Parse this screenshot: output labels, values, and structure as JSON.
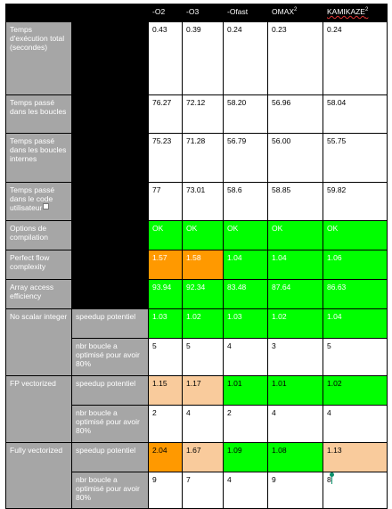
{
  "header": {
    "columns": [
      "-O2",
      "-O3",
      "-Ofast",
      "OMAX",
      "KAMIKAZE"
    ],
    "omax_sup": "2",
    "kamikaze_sup": "2"
  },
  "rows": [
    {
      "label": "Temps d'exécution total (secondes)",
      "values": [
        "0.43",
        "0.39",
        "0.24",
        "0.23",
        "0.24"
      ]
    },
    {
      "label": "Temps passé dans les boucles",
      "values": [
        "76.27",
        "72.12",
        "58.20",
        "56.96",
        "58.04"
      ]
    },
    {
      "label": "Temps passé dans les boucles internes",
      "values": [
        "75.23",
        "71.28",
        "56.79",
        "56.00",
        "55.75"
      ]
    },
    {
      "label": "Temps passé dans le code utilisateur",
      "values": [
        "77",
        "73.01",
        "58.6",
        "58.85",
        "59.82"
      ]
    },
    {
      "label": "Options de compilation",
      "values": [
        "OK",
        "OK",
        "OK",
        "OK",
        "OK"
      ]
    },
    {
      "label": "Perfect flow complexity",
      "values": [
        "1.57",
        "1.58",
        "1.04",
        "1.04",
        "1.06"
      ]
    },
    {
      "label": "Array access efficiency",
      "values": [
        "93.94",
        "92.34",
        "83.48",
        "87.64",
        "86.63"
      ]
    }
  ],
  "groups": [
    {
      "label": "No scalar integer",
      "speedup_label": "speedup potentiel",
      "speedup": [
        "1.03",
        "1.02",
        "1.03",
        "1.02",
        "1.04"
      ],
      "loops_label": "nbr boucle a optimisé pour avoir 80%",
      "loops": [
        "5",
        "5",
        "4",
        "3",
        "5"
      ]
    },
    {
      "label": "FP vectorized",
      "speedup_label": "speedup potentiel",
      "speedup": [
        "1.15",
        "1.17",
        "1.01",
        "1.01",
        "1.02"
      ],
      "loops_label": "nbr boucle a optimisé pour avoir 80%",
      "loops": [
        "2",
        "4",
        "2",
        "4",
        "4"
      ]
    },
    {
      "label": "Fully vectorized",
      "speedup_label": "speedup potentiel",
      "speedup": [
        "2.04",
        "1.67",
        "1.09",
        "1.08",
        "1.13"
      ],
      "loops_label": "nbr boucle a optimisé pour avoir 80%",
      "loops": [
        "9",
        "7",
        "4",
        "9",
        "8"
      ]
    }
  ],
  "colors": {
    "green": "#00ff00",
    "orange": "#ff9900",
    "peach": "#f9cb9c",
    "label_gray": "#a6a6a6",
    "black": "#000000"
  },
  "icons": {
    "comment_marker": "comment-marker-icon",
    "cursor": "text-cursor-icon"
  }
}
